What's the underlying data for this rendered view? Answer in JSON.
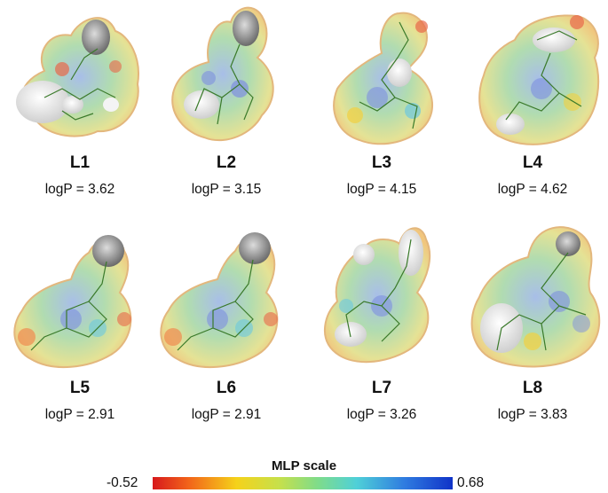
{
  "molecules": [
    {
      "label": "L1",
      "logp": "logP = 3.62"
    },
    {
      "label": "L2",
      "logp": "logP = 3.15"
    },
    {
      "label": "L3",
      "logp": "logP = 4.15"
    },
    {
      "label": "L4",
      "logp": "logP = 4.62"
    },
    {
      "label": "L5",
      "logp": "logP = 2.91"
    },
    {
      "label": "L6",
      "logp": "logP = 2.91"
    },
    {
      "label": "L7",
      "logp": "logP = 3.26"
    },
    {
      "label": "L8",
      "logp": "logP = 3.83"
    }
  ],
  "scale": {
    "title": "MLP scale",
    "min": "-0.52",
    "max": "0.68",
    "colors": [
      "#d7191c",
      "#f2641a",
      "#f5d21a",
      "#c7e04a",
      "#7fdc8a",
      "#4fd0d8",
      "#2f7be0",
      "#1033c8"
    ]
  }
}
